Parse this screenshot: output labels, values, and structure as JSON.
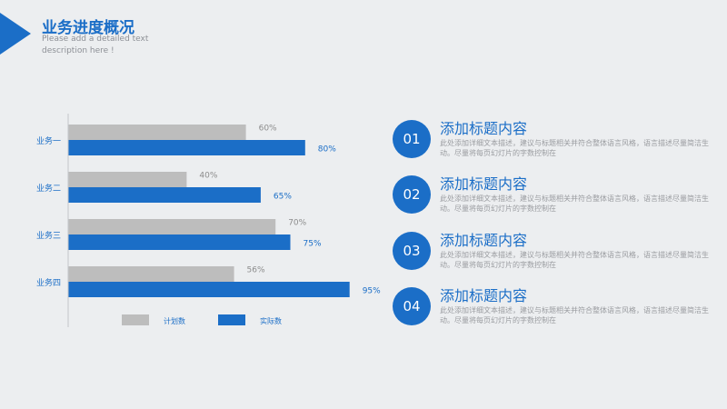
{
  "header": {
    "title": "业务进度概况",
    "subtitle": "Please add a detailed text description here !"
  },
  "chart_data": {
    "type": "bar",
    "orientation": "horizontal",
    "categories": [
      "业务一",
      "业务二",
      "业务三",
      "业务四"
    ],
    "series": [
      {
        "name": "计划数",
        "values": [
          60,
          40,
          70,
          56
        ],
        "color": "#bdbdbd"
      },
      {
        "name": "实际数",
        "values": [
          80,
          65,
          75,
          95
        ],
        "color": "#1b6ec7"
      }
    ],
    "value_labels": [
      [
        "60%",
        "40%",
        "70%",
        "56%"
      ],
      [
        "80%",
        "65%",
        "75%",
        "95%"
      ]
    ],
    "xlim": [
      0,
      100
    ],
    "legend_position": "bottom",
    "grid": false
  },
  "cards": [
    {
      "number": "01",
      "title": "添加标题内容",
      "description": "此处添加详细文本描述，建议与标题相关并符合整体语言风格，语言描述尽量简洁生动。尽量将每页幻灯片的字数控制在"
    },
    {
      "number": "02",
      "title": "添加标题内容",
      "description": "此处添加详细文本描述，建议与标题相关并符合整体语言风格，语言描述尽量简洁生动。尽量将每页幻灯片的字数控制在"
    },
    {
      "number": "03",
      "title": "添加标题内容",
      "description": "此处添加详细文本描述，建议与标题相关并符合整体语言风格，语言描述尽量简洁生动。尽量将每页幻灯片的字数控制在"
    },
    {
      "number": "04",
      "title": "添加标题内容",
      "description": "此处添加详细文本描述，建议与标题相关并符合整体语言风格，语言描述尽量简洁生动。尽量将每页幻灯片的字数控制在"
    }
  ],
  "colors": {
    "accent": "#1b6ec7",
    "plan": "#bdbdbd",
    "background": "#eceef0"
  }
}
